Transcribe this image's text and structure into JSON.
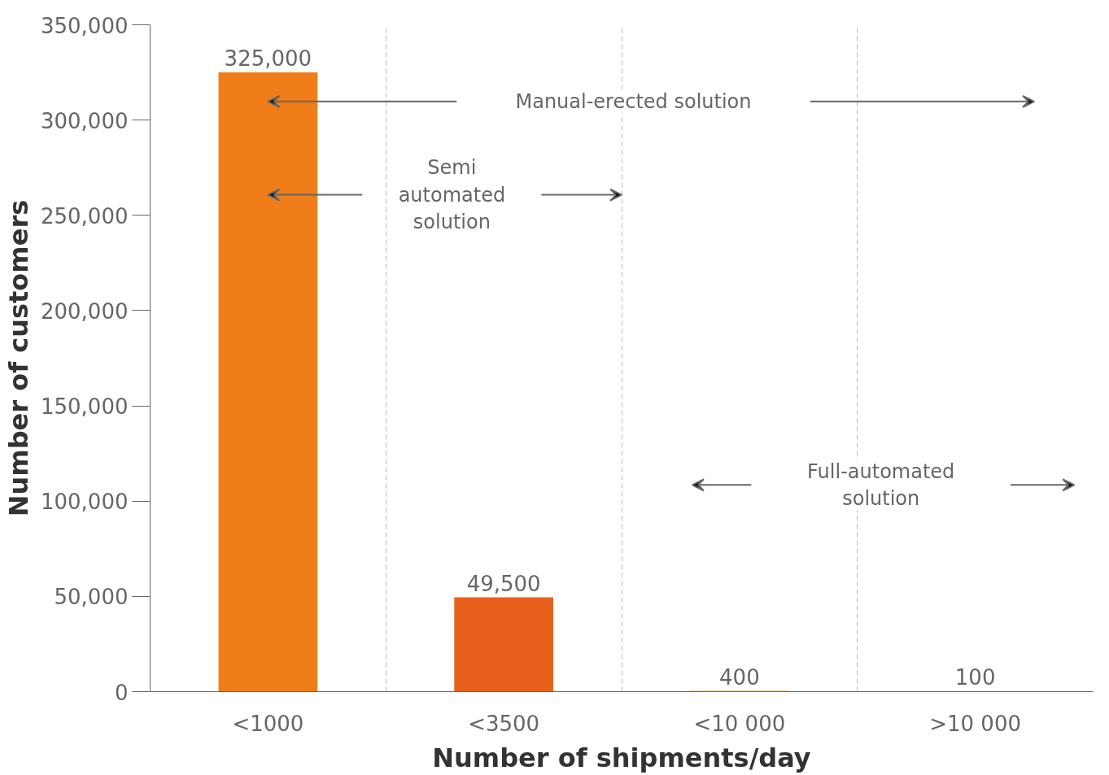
{
  "chart_data": {
    "type": "bar",
    "xlabel": "Number of shipments/day",
    "ylabel": "Number of customers",
    "categories": [
      "<1000",
      "<3500",
      "<10 000",
      ">10 000"
    ],
    "values": [
      325000,
      49500,
      400,
      100
    ],
    "colors": [
      "#ef7d1a",
      "#e8601c",
      "#f0a040",
      "#f0b050"
    ],
    "value_labels": [
      "325,000",
      "49,500",
      "400",
      "100"
    ],
    "ylim": [
      0,
      350000
    ],
    "yticks": [
      {
        "value": 0,
        "label": "0"
      },
      {
        "value": 50000,
        "label": "50,000"
      },
      {
        "value": 100000,
        "label": "100,000"
      },
      {
        "value": 150000,
        "label": "150,000"
      },
      {
        "value": 200000,
        "label": "200,000"
      },
      {
        "value": 250000,
        "label": "250,000"
      },
      {
        "value": 300000,
        "label": "300,000"
      },
      {
        "value": 350000,
        "label": "350,000"
      }
    ],
    "grid": "x",
    "annotations": [
      "Manual-erected solution",
      "Semi\nautomated\nsolution",
      "Full-automated\nsolution"
    ]
  }
}
